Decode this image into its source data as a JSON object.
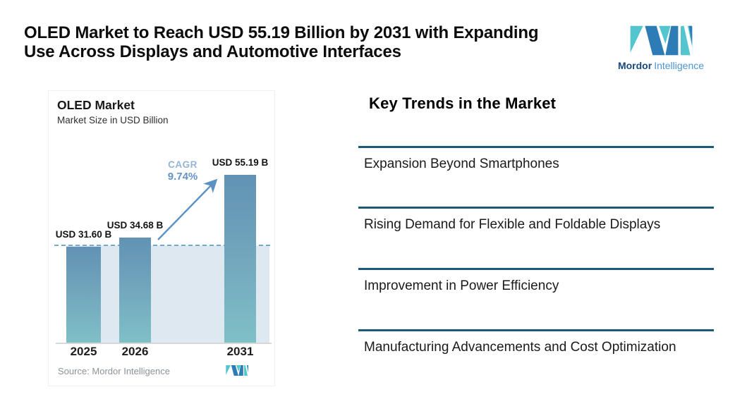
{
  "header": {
    "title_line1": "OLED Market to Reach USD 55.19 Billion by 2031 with Expanding",
    "title_line2": "Use Across Displays and Automotive Interfaces"
  },
  "brand": {
    "name_primary": "Mordor",
    "name_secondary": "Intelligence",
    "mark_color_blue": "#2e7cb5",
    "mark_color_teal": "#52c5ce"
  },
  "chart": {
    "title": "OLED Market",
    "subtitle": "Market Size in USD Billion",
    "cagr_label": "CAGR",
    "cagr_value": "9.74%",
    "source": "Source: Mordor Intelligence"
  },
  "chart_data": {
    "type": "bar",
    "title": "OLED Market",
    "subtitle": "Market Size in USD Billion",
    "categories": [
      "2025",
      "2026",
      "2031"
    ],
    "values": [
      31.6,
      34.68,
      55.19
    ],
    "value_labels": [
      "USD 31.60 B",
      "USD 34.68 B",
      "USD 55.19 B"
    ],
    "cagr_percent": 9.74,
    "baseline_value": 31.6,
    "ylim": [
      0,
      60
    ],
    "grid": false,
    "legend": "none",
    "bar_gradient_top": "#6192b4",
    "bar_gradient_bottom": "#7fc0c7",
    "band_color": "#dee8f0",
    "dashed_line_color": "#74a8cc",
    "arrow_color": "#5c92c2"
  },
  "trends": {
    "heading": "Key Trends in the Market",
    "separator_color": "#1c5878",
    "items": [
      {
        "label": "Expansion Beyond Smartphones"
      },
      {
        "label": "Rising Demand for Flexible and Foldable Displays"
      },
      {
        "label": "Improvement in Power Efficiency"
      },
      {
        "label": "Manufacturing Advancements and Cost Optimization"
      }
    ]
  }
}
